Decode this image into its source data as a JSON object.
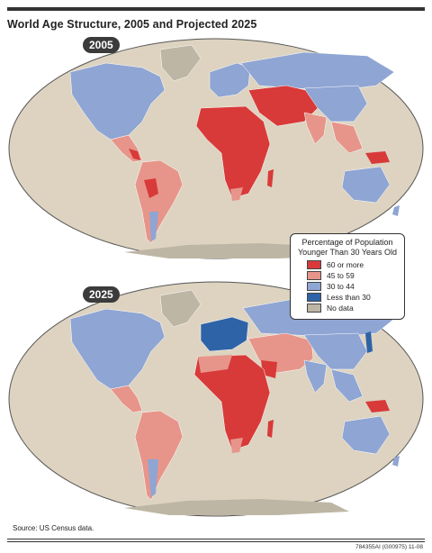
{
  "title": "World Age Structure, 2005 and Projected 2025",
  "maps": [
    {
      "year_label": "2005"
    },
    {
      "year_label": "2025"
    }
  ],
  "legend": {
    "title_line1": "Percentage of Population",
    "title_line2": "Younger Than 30 Years Old",
    "items": [
      {
        "label": "60 or more",
        "color": "#d83a3a"
      },
      {
        "label": "45 to 59",
        "color": "#e7958a"
      },
      {
        "label": "30 to 44",
        "color": "#8fa5d3"
      },
      {
        "label": "Less than 30",
        "color": "#2f63a7"
      },
      {
        "label": "No data",
        "color": "#beb6a4"
      }
    ]
  },
  "colors": {
    "ocean": "#ddd3c0",
    "no_data": "#beb6a4"
  },
  "source": "Source: US Census data.",
  "code": "784355AI (G00975) 11-08"
}
